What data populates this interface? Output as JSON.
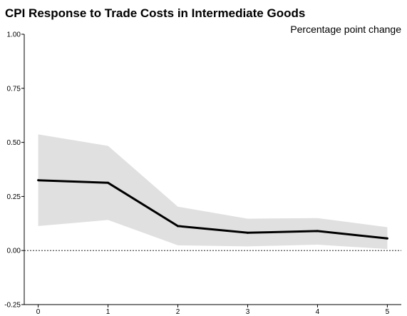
{
  "chart_data": {
    "type": "line",
    "title": "CPI Response to Trade Costs in Intermediate Goods",
    "subtitle": "Percentage point change",
    "xlabel": "",
    "ylabel": "",
    "x": [
      0,
      1,
      2,
      3,
      4,
      5
    ],
    "x_tick_labels": [
      "0",
      "1",
      "2",
      "3",
      "4",
      "5"
    ],
    "y_ticks": [
      -0.25,
      0.0,
      0.25,
      0.5,
      0.75,
      1.0
    ],
    "y_tick_labels": [
      "-0.25",
      "0.00",
      "0.25",
      "0.50",
      "0.75",
      "1.00"
    ],
    "xlim": [
      -0.2,
      5.2
    ],
    "ylim": [
      -0.25,
      1.0
    ],
    "series": [
      {
        "values": [
          0.325,
          0.313,
          0.113,
          0.082,
          0.09,
          0.056
        ]
      }
    ],
    "band_upper": [
      0.537,
      0.484,
      0.203,
      0.147,
      0.15,
      0.108
    ],
    "band_lower": [
      0.113,
      0.141,
      0.024,
      0.019,
      0.027,
      0.007
    ],
    "reference_line": 0.0,
    "grid": false,
    "colors": {
      "line": "#000000",
      "band": "#e0e0e0",
      "axis": "#000000"
    }
  }
}
